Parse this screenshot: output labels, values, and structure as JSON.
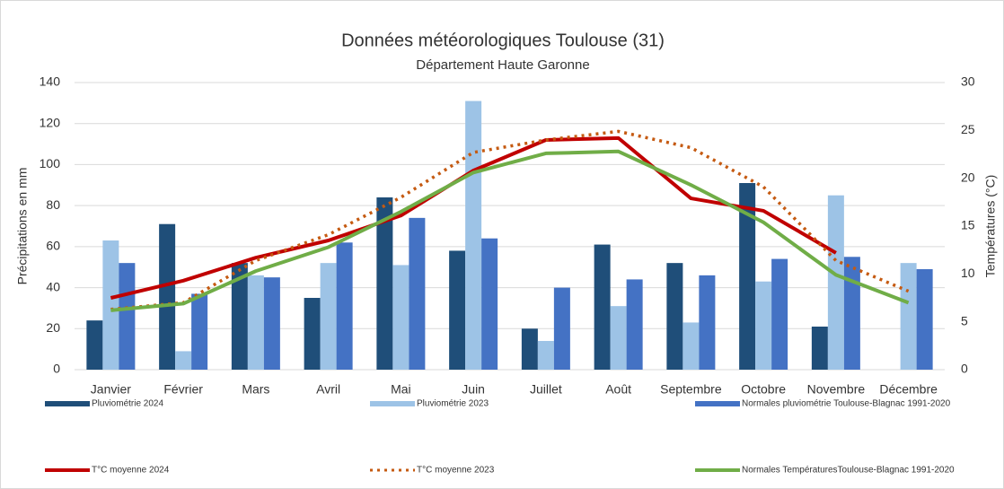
{
  "chart_data": {
    "type": "combo",
    "title": "Données météorologiques Toulouse (31)",
    "subtitle": "Département Haute Garonne",
    "y_label": "Précipitations en mm",
    "y2_label": "Températures (°C)",
    "categories": [
      "Janvier",
      "Février",
      "Mars",
      "Avril",
      "Mai",
      "Juin",
      "Juillet",
      "Août",
      "Septembre",
      "Octobre",
      "Novembre",
      "Décembre"
    ],
    "ylim": [
      0,
      140
    ],
    "yticks": [
      0,
      20,
      40,
      60,
      80,
      100,
      120,
      140
    ],
    "y2lim": [
      0,
      30
    ],
    "y2ticks": [
      0,
      5,
      10,
      15,
      20,
      25,
      30
    ],
    "grid": true,
    "legend": "bottom",
    "series": [
      {
        "name": "Pluviométrie 2024",
        "type": "bar",
        "color": "#1f4e79",
        "values": [
          24,
          71,
          52,
          35,
          84,
          58,
          20,
          61,
          52,
          91,
          21,
          null
        ]
      },
      {
        "name": "Pluviométrie 2023",
        "type": "bar",
        "color": "#9dc3e6",
        "values": [
          63,
          9,
          46,
          52,
          51,
          131,
          14,
          31,
          23,
          43,
          85,
          52
        ]
      },
      {
        "name": "Normales pluviométrie Toulouse-Blagnac 1991-2020",
        "type": "bar",
        "color": "#4472c4",
        "values": [
          52,
          37,
          45,
          62,
          74,
          64,
          40,
          44,
          46,
          54,
          55,
          49
        ]
      },
      {
        "name": "T°C moyenne 2024",
        "type": "line",
        "axis": "y2",
        "color": "#c00000",
        "values": [
          7.5,
          9.3,
          11.7,
          13.5,
          16.1,
          20.8,
          24.0,
          24.2,
          17.9,
          16.6,
          12.2,
          null
        ]
      },
      {
        "name": "T°C moyenne 2023",
        "type": "line",
        "axis": "y2",
        "color": "#c55a11",
        "dash": "dotted",
        "values": [
          6.3,
          7.0,
          11.4,
          14.1,
          18.0,
          22.7,
          24.0,
          24.9,
          23.2,
          19.1,
          11.4,
          8.2
        ]
      },
      {
        "name": "Normales TempératuresToulouse-Blagnac 1991-2020",
        "type": "line",
        "axis": "y2",
        "color": "#70ad47",
        "values": [
          6.2,
          6.9,
          10.3,
          12.8,
          16.5,
          20.6,
          22.6,
          22.8,
          19.3,
          15.4,
          9.9,
          7.0
        ]
      }
    ]
  }
}
